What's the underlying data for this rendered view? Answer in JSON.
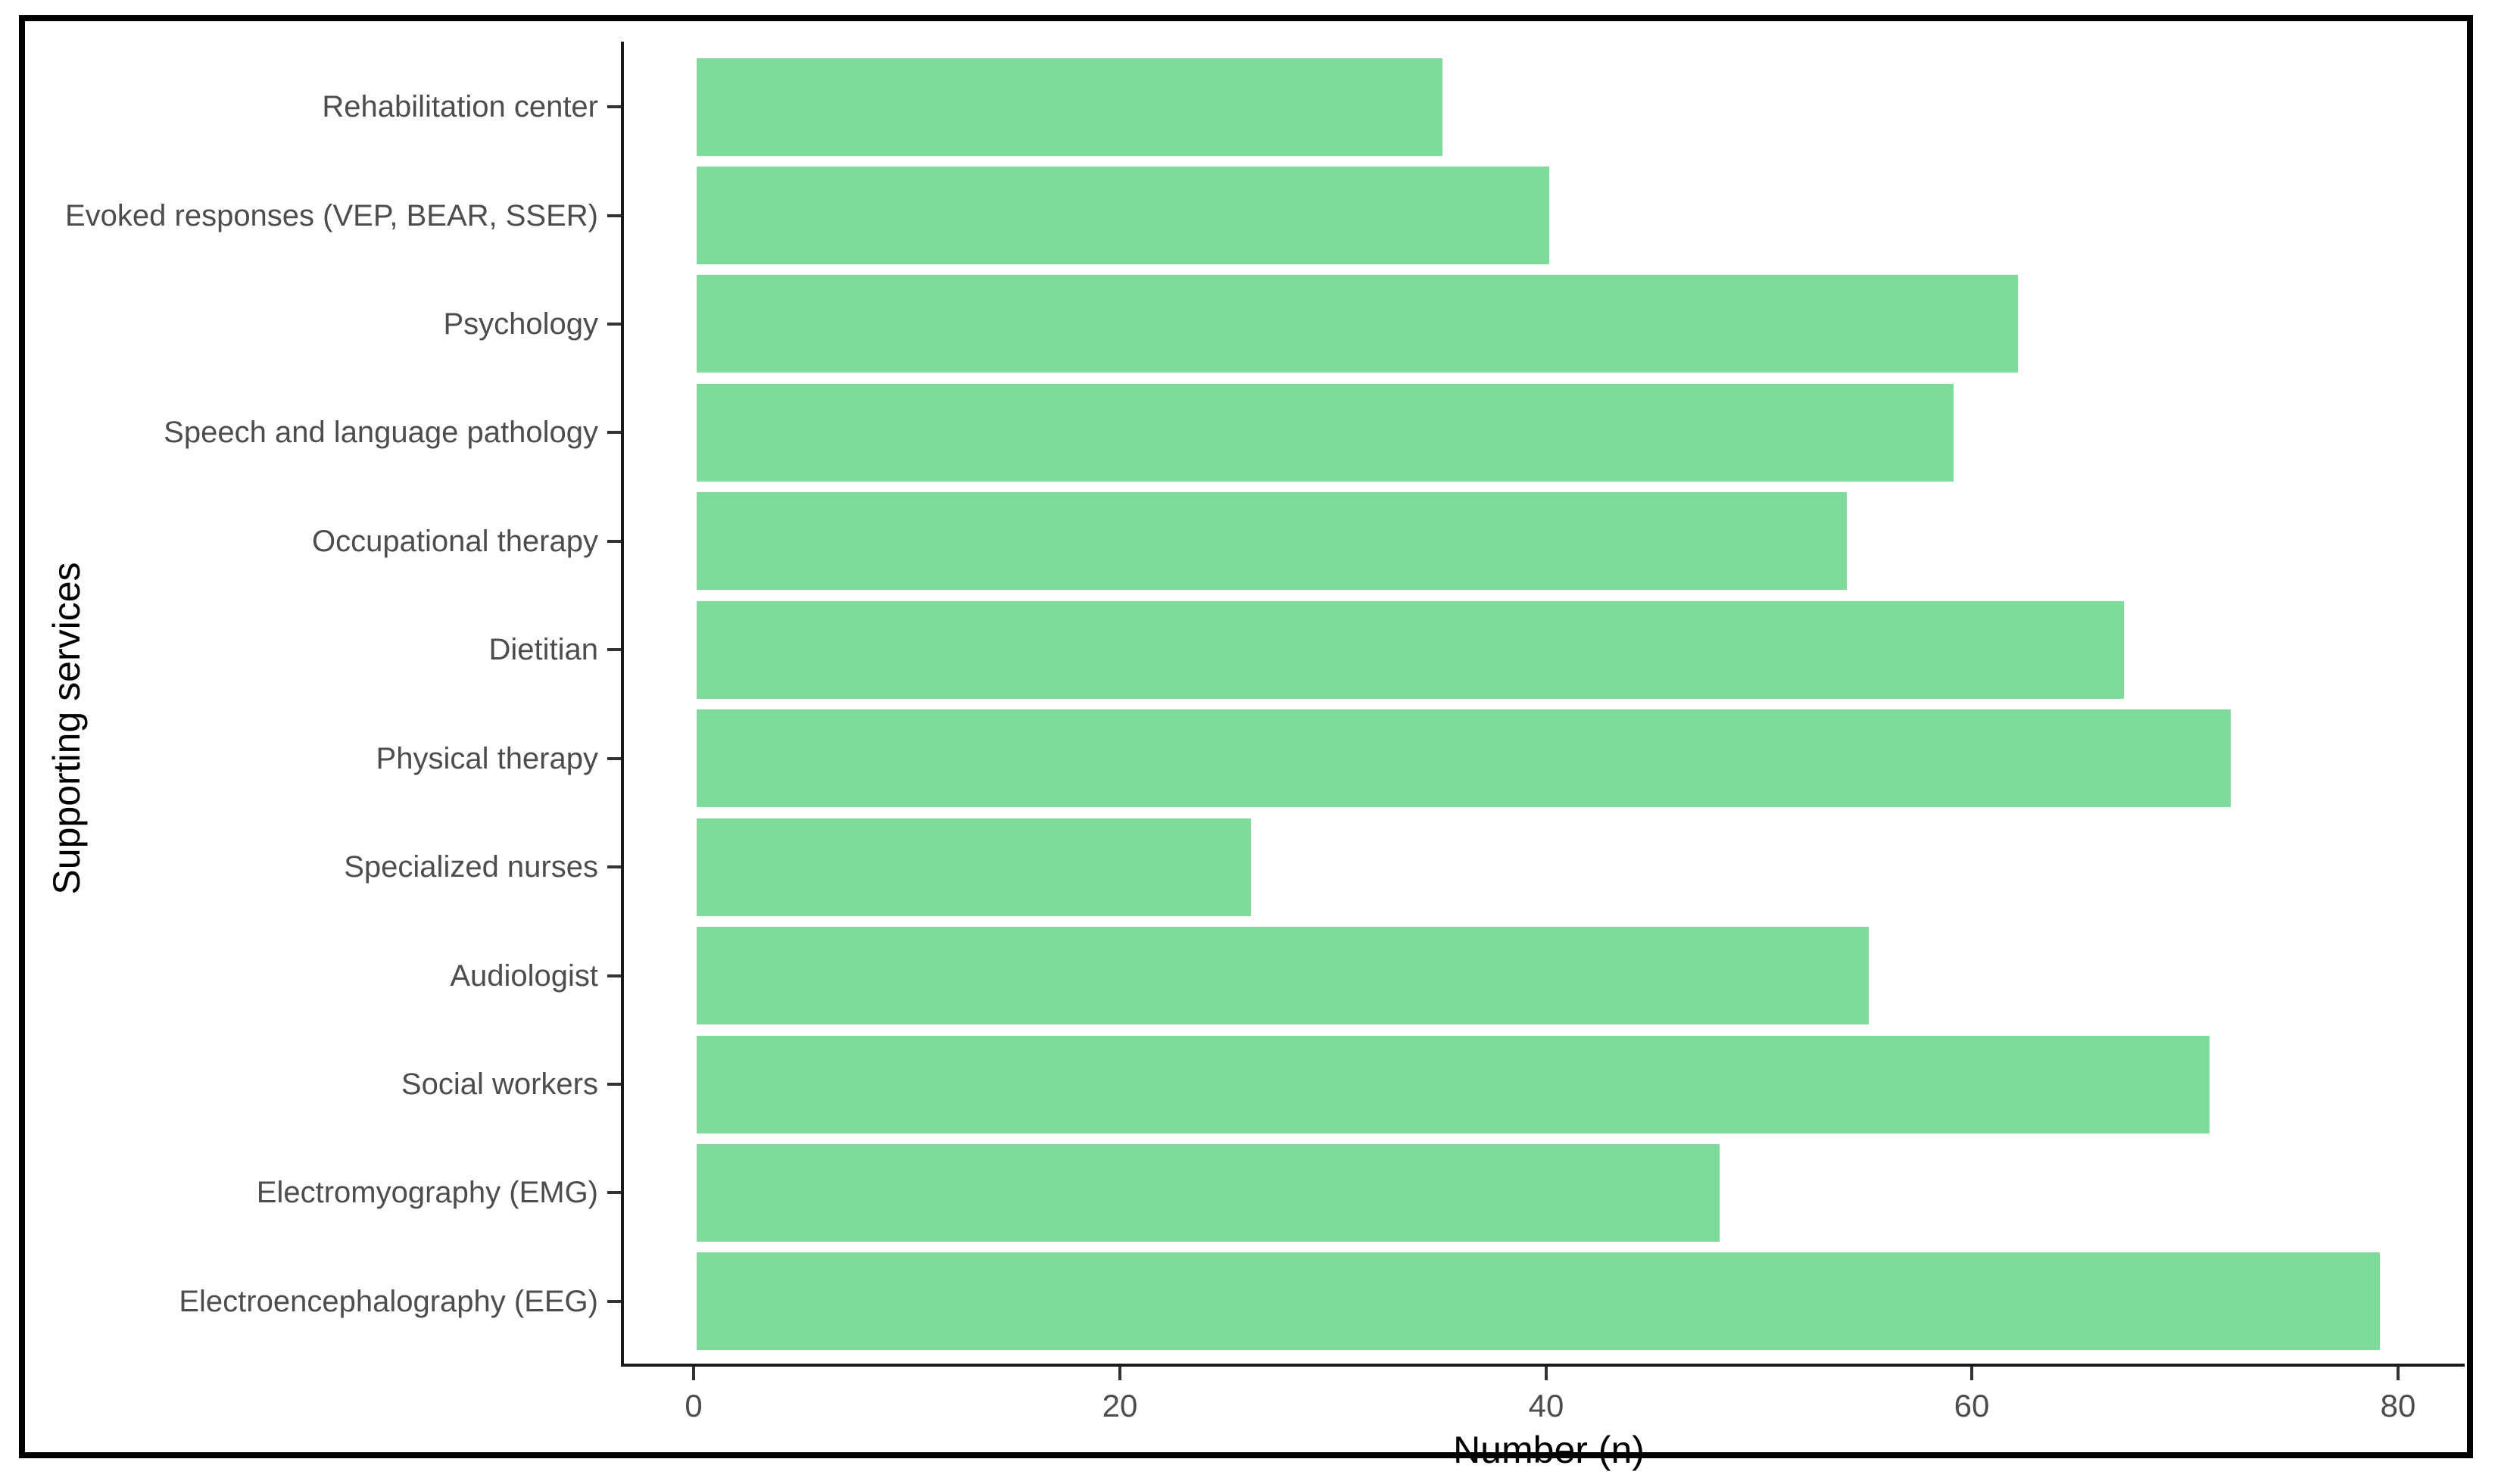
{
  "figure": {
    "background_color": "#ffffff",
    "frame_border_color": "#000000"
  },
  "chart_data": {
    "type": "bar",
    "orientation": "horizontal",
    "title": "",
    "xlabel": "Number (n)",
    "ylabel": "Supporting services",
    "categories": [
      "Rehabilitation center",
      "Evoked responses (VEP, BEAR, SSER)",
      "Psychology",
      "Speech and language pathology",
      "Occupational therapy",
      "Dietitian",
      "Physical therapy",
      "Specialized nurses",
      "Audiologist",
      "Social workers",
      "Electromyography (EMG)",
      "Electroencephalography (EEG)"
    ],
    "values": [
      35,
      40,
      62,
      59,
      54,
      67,
      72,
      26,
      55,
      71,
      48,
      79
    ],
    "xticks": [
      0,
      20,
      40,
      60,
      80
    ],
    "xlim": [
      0,
      80
    ],
    "bar_color": "#7EDC9B",
    "axis_color": "#1a1a1a",
    "tick_color": "#333333",
    "tick_label_color": "#4d4d4d",
    "grid": false,
    "legend_position": "none"
  }
}
